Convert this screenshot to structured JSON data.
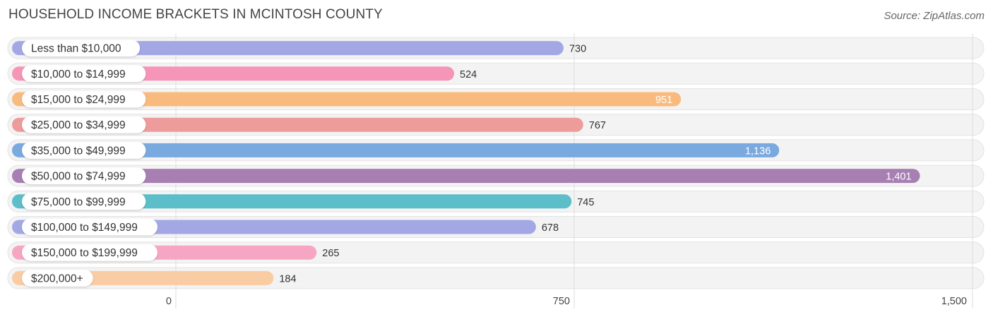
{
  "title": "HOUSEHOLD INCOME BRACKETS IN MCINTOSH COUNTY",
  "source": "Source: ZipAtlas.com",
  "chart_data": {
    "type": "bar",
    "orientation": "horizontal",
    "categories": [
      "Less than $10,000",
      "$10,000 to $14,999",
      "$15,000 to $24,999",
      "$25,000 to $34,999",
      "$35,000 to $49,999",
      "$50,000 to $74,999",
      "$75,000 to $99,999",
      "$100,000 to $149,999",
      "$150,000 to $199,999",
      "$200,000+"
    ],
    "values": [
      730,
      524,
      951,
      767,
      1136,
      1401,
      745,
      678,
      265,
      184
    ],
    "value_labels": [
      "730",
      "524",
      "951",
      "767",
      "1,136",
      "1,401",
      "745",
      "678",
      "265",
      "184"
    ],
    "colors": [
      "#a3a8e4",
      "#f595b7",
      "#f9bb7d",
      "#ee9b9b",
      "#7aa9e0",
      "#a77fb3",
      "#5bbec9",
      "#a3a8e4",
      "#f6a6c3",
      "#f9cca3"
    ],
    "xlim": [
      0,
      1500
    ],
    "xticks": [
      0,
      750,
      1500
    ],
    "xtick_labels": [
      "0",
      "750",
      "1,500"
    ],
    "grid": true
  }
}
